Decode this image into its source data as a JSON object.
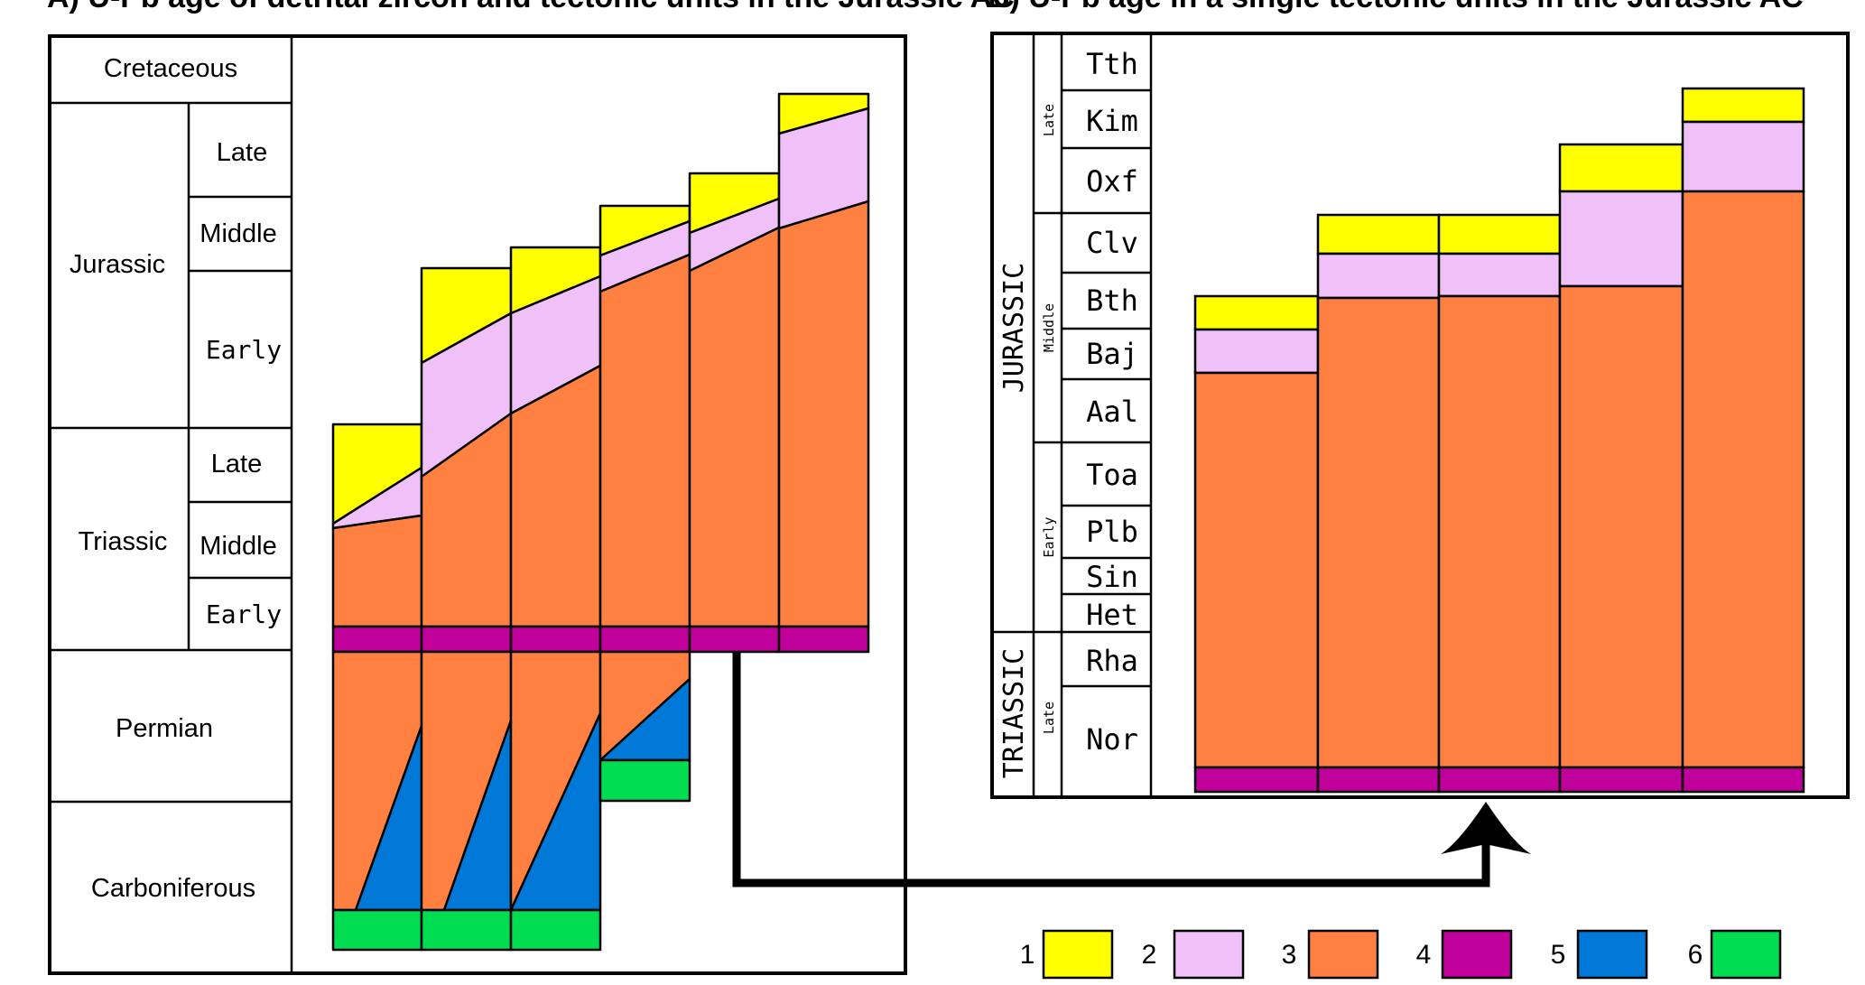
{
  "panel_a": {
    "title": "A) U-Pb age of detrital zircon and tectonic units in the Jurassic AC",
    "timescale": {
      "cretaceous": "Cretaceous",
      "jurassic": "Jurassic",
      "triassic": "Triassic",
      "permian": "Permian",
      "carboniferous": "Carboniferous",
      "jur_late": "Late",
      "jur_middle": "Middle",
      "jur_early": "Early",
      "tri_late": "Late",
      "tri_middle": "Middle",
      "tri_early": "Early"
    }
  },
  "panel_b": {
    "title": "B) U-Pb age in a single tectonic units in the Jurassic AC",
    "periods": {
      "jurassic": "JURASSIC",
      "triassic": "TRIASSIC"
    },
    "epochs": {
      "jur_late": "Late",
      "jur_middle": "Middle",
      "jur_early": "Early",
      "tri_late": "Late"
    },
    "stages": [
      "Tth",
      "Kim",
      "Oxf",
      "Clv",
      "Bth",
      "Baj",
      "Aal",
      "Toa",
      "Plb",
      "Sin",
      "Het",
      "Rha",
      "Nor"
    ]
  },
  "legend": [
    {
      "label": "1",
      "color": "#ffff00"
    },
    {
      "label": "2",
      "color": "#f0c0f8"
    },
    {
      "label": "3",
      "color": "#ff8040"
    },
    {
      "label": "4",
      "color": "#c0009a"
    },
    {
      "label": "5",
      "color": "#0078d8"
    },
    {
      "label": "6",
      "color": "#00dd50"
    }
  ],
  "colors": {
    "yellow": "#ffff00",
    "pink": "#f0c0f8",
    "orange": "#ff8040",
    "magenta": "#c0009a",
    "blue": "#0078d8",
    "green": "#00dd50"
  }
}
